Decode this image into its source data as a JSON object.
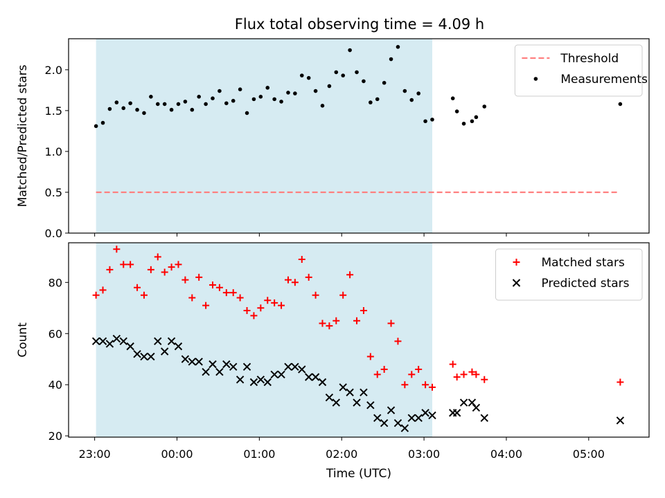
{
  "chart_data": {
    "title": "Flux total observing time = 4.09 h",
    "colors": {
      "threshold": "#ff7f7f",
      "shade": "#add8e6",
      "matched": "#ff0000",
      "predicted": "#000000",
      "measurements": "#000000"
    },
    "x_axis": {
      "label": "Time (UTC)",
      "range_minutes": [
        -19,
        404
      ],
      "ticks": [
        {
          "minute": 0,
          "label": "23:00"
        },
        {
          "minute": 60,
          "label": "00:00"
        },
        {
          "minute": 120,
          "label": "01:00"
        },
        {
          "minute": 180,
          "label": "02:00"
        },
        {
          "minute": 240,
          "label": "03:00"
        },
        {
          "minute": 300,
          "label": "04:00"
        },
        {
          "minute": 360,
          "label": "05:00"
        }
      ]
    },
    "shaded_interval_minutes": [
      1,
      246
    ],
    "panels": [
      {
        "id": "ratio",
        "type": "scatter",
        "ylabel": "Matched/Predicted stars",
        "ylim": [
          0,
          2.38
        ],
        "yticks": [
          "0.0",
          "0.5",
          "1.0",
          "1.5",
          "2.0"
        ],
        "legend_position": "top-right",
        "threshold": {
          "name": "Threshold",
          "y": 0.5,
          "x_range_minutes": [
            1,
            382
          ]
        },
        "series": [
          {
            "name": "Measurements",
            "marker": "dot",
            "points": [
              [
                1,
                1.31
              ],
              [
                6,
                1.35
              ],
              [
                11,
                1.52
              ],
              [
                16,
                1.6
              ],
              [
                21,
                1.53
              ],
              [
                26,
                1.59
              ],
              [
                31,
                1.51
              ],
              [
                36,
                1.47
              ],
              [
                41,
                1.67
              ],
              [
                46,
                1.58
              ],
              [
                51,
                1.58
              ],
              [
                56,
                1.51
              ],
              [
                61,
                1.58
              ],
              [
                66,
                1.61
              ],
              [
                71,
                1.51
              ],
              [
                76,
                1.67
              ],
              [
                81,
                1.58
              ],
              [
                86,
                1.65
              ],
              [
                91,
                1.74
              ],
              [
                96,
                1.59
              ],
              [
                101,
                1.62
              ],
              [
                106,
                1.76
              ],
              [
                111,
                1.47
              ],
              [
                116,
                1.64
              ],
              [
                121,
                1.67
              ],
              [
                126,
                1.78
              ],
              [
                131,
                1.64
              ],
              [
                136,
                1.61
              ],
              [
                141,
                1.72
              ],
              [
                146,
                1.71
              ],
              [
                151,
                1.93
              ],
              [
                156,
                1.9
              ],
              [
                161,
                1.74
              ],
              [
                166,
                1.56
              ],
              [
                171,
                1.8
              ],
              [
                176,
                1.97
              ],
              [
                181,
                1.93
              ],
              [
                186,
                2.24
              ],
              [
                191,
                1.97
              ],
              [
                196,
                1.86
              ],
              [
                201,
                1.6
              ],
              [
                206,
                1.64
              ],
              [
                211,
                1.84
              ],
              [
                216,
                2.13
              ],
              [
                221,
                2.28
              ],
              [
                226,
                1.74
              ],
              [
                231,
                1.63
              ],
              [
                236,
                1.71
              ],
              [
                241,
                1.37
              ],
              [
                246,
                1.39
              ],
              [
                261,
                1.65
              ],
              [
                264,
                1.49
              ],
              [
                269,
                1.34
              ],
              [
                275,
                1.37
              ],
              [
                278,
                1.42
              ],
              [
                284,
                1.55
              ],
              [
                383,
                1.58
              ]
            ]
          }
        ]
      },
      {
        "id": "counts",
        "type": "scatter",
        "ylabel": "Count",
        "ylim": [
          19.5,
          95.5
        ],
        "yticks": [
          "20",
          "40",
          "60",
          "80"
        ],
        "legend_position": "top-right",
        "series": [
          {
            "name": "Matched stars",
            "marker": "plus",
            "points": [
              [
                1,
                75
              ],
              [
                6,
                77
              ],
              [
                11,
                85
              ],
              [
                16,
                93
              ],
              [
                21,
                87
              ],
              [
                26,
                87
              ],
              [
                31,
                78
              ],
              [
                36,
                75
              ],
              [
                41,
                85
              ],
              [
                46,
                90
              ],
              [
                51,
                84
              ],
              [
                56,
                86
              ],
              [
                61,
                87
              ],
              [
                66,
                81
              ],
              [
                71,
                74
              ],
              [
                76,
                82
              ],
              [
                81,
                71
              ],
              [
                86,
                79
              ],
              [
                91,
                78
              ],
              [
                96,
                76
              ],
              [
                101,
                76
              ],
              [
                106,
                74
              ],
              [
                111,
                69
              ],
              [
                116,
                67
              ],
              [
                121,
                70
              ],
              [
                126,
                73
              ],
              [
                131,
                72
              ],
              [
                136,
                71
              ],
              [
                141,
                81
              ],
              [
                146,
                80
              ],
              [
                151,
                89
              ],
              [
                156,
                82
              ],
              [
                161,
                75
              ],
              [
                166,
                64
              ],
              [
                171,
                63
              ],
              [
                176,
                65
              ],
              [
                181,
                75
              ],
              [
                186,
                83
              ],
              [
                191,
                65
              ],
              [
                196,
                69
              ],
              [
                201,
                51
              ],
              [
                206,
                44
              ],
              [
                211,
                46
              ],
              [
                216,
                64
              ],
              [
                221,
                57
              ],
              [
                226,
                40
              ],
              [
                231,
                44
              ],
              [
                236,
                46
              ],
              [
                241,
                40
              ],
              [
                246,
                39
              ],
              [
                261,
                48
              ],
              [
                264,
                43
              ],
              [
                269,
                44
              ],
              [
                275,
                45
              ],
              [
                278,
                44
              ],
              [
                284,
                42
              ],
              [
                383,
                41
              ]
            ]
          },
          {
            "name": "Predicted stars",
            "marker": "x",
            "points": [
              [
                1,
                57
              ],
              [
                6,
                57
              ],
              [
                11,
                56
              ],
              [
                16,
                58
              ],
              [
                21,
                57
              ],
              [
                26,
                55
              ],
              [
                31,
                52
              ],
              [
                36,
                51
              ],
              [
                41,
                51
              ],
              [
                46,
                57
              ],
              [
                51,
                53
              ],
              [
                56,
                57
              ],
              [
                61,
                55
              ],
              [
                66,
                50
              ],
              [
                71,
                49
              ],
              [
                76,
                49
              ],
              [
                81,
                45
              ],
              [
                86,
                48
              ],
              [
                91,
                45
              ],
              [
                96,
                48
              ],
              [
                101,
                47
              ],
              [
                106,
                42
              ],
              [
                111,
                47
              ],
              [
                116,
                41
              ],
              [
                121,
                42
              ],
              [
                126,
                41
              ],
              [
                131,
                44
              ],
              [
                136,
                44
              ],
              [
                141,
                47
              ],
              [
                146,
                47
              ],
              [
                151,
                46
              ],
              [
                156,
                43
              ],
              [
                161,
                43
              ],
              [
                166,
                41
              ],
              [
                171,
                35
              ],
              [
                176,
                33
              ],
              [
                181,
                39
              ],
              [
                186,
                37
              ],
              [
                191,
                33
              ],
              [
                196,
                37
              ],
              [
                201,
                32
              ],
              [
                206,
                27
              ],
              [
                211,
                25
              ],
              [
                216,
                30
              ],
              [
                221,
                25
              ],
              [
                226,
                23
              ],
              [
                231,
                27
              ],
              [
                236,
                27
              ],
              [
                241,
                29
              ],
              [
                246,
                28
              ],
              [
                261,
                29
              ],
              [
                264,
                29
              ],
              [
                269,
                33
              ],
              [
                275,
                33
              ],
              [
                278,
                31
              ],
              [
                284,
                27
              ],
              [
                383,
                26
              ]
            ]
          }
        ]
      }
    ]
  }
}
